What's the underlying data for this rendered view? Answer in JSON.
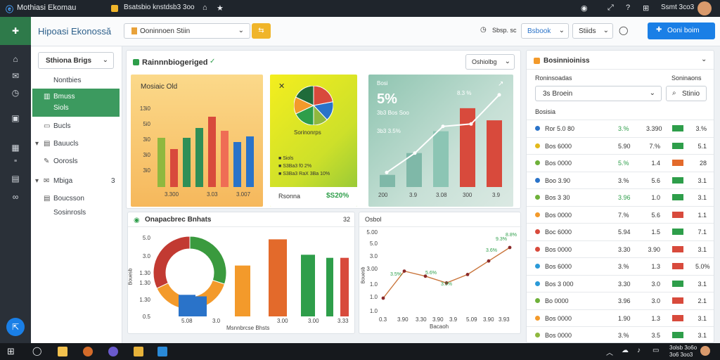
{
  "app": {
    "title": "Mothiasi Ekomau",
    "tab_label": "Bsatsbio knstdsb3 3oo"
  },
  "topbar": {
    "user_label": "Ssmt 3co3"
  },
  "header": {
    "page_title": "Hipoasi Ekonossă",
    "selector_value": "Ooninnoen Stiin",
    "help_label": "Sbsp. sc",
    "filter1_label": "Bsbook",
    "filter2_label": "Stiids",
    "primary_button": "Ooni boim"
  },
  "sidenav": {
    "dropdown_label": "Sthiona Brigs",
    "items": [
      {
        "label": "Nontbies",
        "icon": ""
      },
      {
        "label": "Bmuss",
        "icon": "chart-icon"
      },
      {
        "label": "Siols",
        "icon": ""
      },
      {
        "label": "Bucls",
        "icon": "doc-icon"
      },
      {
        "label": "Bauucls",
        "icon": "inbox-icon"
      },
      {
        "label": "Oorosls",
        "icon": "edit-icon"
      },
      {
        "label": "Mbiga",
        "icon": "mail-icon",
        "badge": "3"
      },
      {
        "label": "Boucsson",
        "icon": "list-icon"
      },
      {
        "label": "Sosinrosls",
        "icon": ""
      }
    ]
  },
  "overview": {
    "title": "Rainnnbiogeriged",
    "dropdown_label": "Oshiolbg"
  },
  "tile1": {
    "title": "Mosiaic Old",
    "yticks": [
      "13i0",
      "5i0",
      "3i0",
      "3i0",
      "3i0"
    ],
    "xticks": [
      "3.300",
      "3.03",
      "3.007"
    ]
  },
  "tile2": {
    "pie_label": "Sorinonrps",
    "legend": [
      "Siols",
      "S3Ba3 f0 2%",
      "S3Ba3 RaX 3Ba 10%"
    ],
    "footer_left": "Rsonna",
    "footer_right": "$S20%"
  },
  "tile3": {
    "label": "Bosi",
    "value": "5%",
    "sublabel": "3b3 Bos Soo",
    "trend_label": "3b3 3.5%",
    "growth_label": "8.3 %",
    "xticks": [
      "200",
      "3.9",
      "3.08",
      "300",
      "3.9"
    ]
  },
  "bottom_left": {
    "title": "Onapacbrec Bnhats",
    "count": "32",
    "yticks": [
      "5.0",
      "3.0",
      "1.30",
      "1.30",
      "1.30",
      "0.5"
    ],
    "ylabel": "Bouesb",
    "xticks": [
      "5.08",
      "3.0",
      "3.00",
      "3.00",
      "3.33"
    ],
    "xlabel": "Msnnbrcse Bhsts"
  },
  "bottom_right": {
    "title": "Osbol",
    "yticks": [
      "5.00",
      "5.0",
      "3.0",
      "3.00",
      "1.0",
      "1.0",
      "1.0"
    ],
    "ylabel": "Bouesb",
    "xticks": [
      "0.3",
      "3.90",
      "3.30",
      "3.90",
      "3.9",
      "5.09",
      "3.90",
      "3.93"
    ],
    "xlabel": "Bacaoh",
    "point_labels": [
      "3.5%",
      "5.6%",
      "3.5%",
      "3.6%",
      "9.3%",
      "8.8%"
    ]
  },
  "right_panel": {
    "title": "Bosinnioiniss",
    "label_left": "Roninsoadas",
    "label_right": "Soninaons",
    "select_value": "3s Broein",
    "button_label": "Stinio",
    "section_label": "Bosisia"
  },
  "table_rows": [
    {
      "name": "Ror 5.0 80",
      "pct": "3.%",
      "c3": "3.390",
      "c5": "3.%"
    },
    {
      "name": "Bos 6000",
      "pct": "5.90",
      "c3": "7.%",
      "c5": "5.1"
    },
    {
      "name": "Bos 0000",
      "pct": "5.%",
      "c3": "1.4",
      "c5": "28"
    },
    {
      "name": "Boo 3.90",
      "pct": "3.%",
      "c3": "5.6",
      "c5": "3.1"
    },
    {
      "name": "Bos 3 30",
      "pct": "3.96",
      "c3": "1.0",
      "c5": "3.1"
    },
    {
      "name": "Bos 0000",
      "pct": "7.%",
      "c3": "5.6",
      "c5": "1.1"
    },
    {
      "name": "Boc 6000",
      "pct": "5.94",
      "c3": "1.5",
      "c5": "7.1"
    },
    {
      "name": "Bos 0000",
      "pct": "3.30",
      "c3": "3.90",
      "c5": "3.1"
    },
    {
      "name": "Bos 6000",
      "pct": "3.%",
      "c3": "1.3",
      "c5": "5.0%"
    },
    {
      "name": "Bos 3 000",
      "pct": "3.30",
      "c3": "3.0",
      "c5": "3.1"
    },
    {
      "name": "Bo 0000",
      "pct": "3.96",
      "c3": "3.0",
      "c5": "2.1"
    },
    {
      "name": "Bos 0000",
      "pct": "1.90",
      "c3": "1.3",
      "c5": "3.1"
    },
    {
      "name": "Bos 0000",
      "pct": "3.%",
      "c3": "3.5",
      "c5": "3.1"
    }
  ],
  "taskbar": {
    "time": "3olsb 3o6o",
    "date": "3o6 3oo3"
  },
  "colors": {
    "green": "#2e9e4a",
    "red": "#d84a3c",
    "orange": "#f39a2b",
    "yellow": "#e3d21b",
    "blue": "#2a73c9",
    "accent": "#1a7fe6",
    "nav_active": "#3c9a5f"
  },
  "chart_data": [
    {
      "type": "bar",
      "categories": [
        "1",
        "2",
        "3",
        "4",
        "5",
        "6",
        "7",
        "8"
      ],
      "values": [
        3.5,
        2.7,
        3.5,
        4.2,
        5.0,
        4.0,
        3.2,
        3.6
      ],
      "colors": [
        "#8fb83f",
        "#d84a3c",
        "#2f8f57",
        "#2f8f57",
        "#d84a3c",
        "#ef6d55",
        "#2a73c9",
        "#2a73c9"
      ]
    },
    {
      "type": "pie",
      "labels": [
        "a",
        "b",
        "c",
        "d",
        "e",
        "f"
      ],
      "values": [
        22,
        16,
        12,
        18,
        14,
        18
      ],
      "colors": [
        "#d84a3c",
        "#2a73c9",
        "#8fb83f",
        "#2e9e4a",
        "#f39a2b",
        "#1f6b3a"
      ]
    },
    {
      "type": "bar",
      "categories": [
        "200",
        "3.9",
        "3.08",
        "300",
        "3.9"
      ],
      "values": [
        10,
        28,
        46,
        65,
        55
      ],
      "colors": [
        "#7fb8a8",
        "#7fb8a8",
        "#8cc5b4",
        "#d84a3c",
        "#d84a3c"
      ],
      "trend": [
        12,
        28,
        50,
        52,
        76
      ]
    },
    {
      "type": "pie",
      "labels": [
        "a",
        "b",
        "c"
      ],
      "values": [
        30,
        38,
        32
      ],
      "colors": [
        "#3a9a3e",
        "#f39a2b",
        "#c23a32"
      ]
    },
    {
      "type": "bar",
      "categories": [
        "1",
        "2",
        "3",
        "4",
        "5",
        "6",
        "7"
      ],
      "values": [
        1.4,
        1.3,
        3.3,
        5.0,
        4.0,
        3.8,
        3.8
      ],
      "colors": [
        "#2a73c9",
        "#2a73c9",
        "#f39a2b",
        "#e36a2b",
        "#2e9e4a",
        "#2e9e4a",
        "#d84a3c"
      ]
    },
    {
      "type": "line",
      "x": [
        1,
        2,
        3,
        4,
        5,
        6,
        7
      ],
      "y": [
        1.0,
        2.6,
        2.3,
        1.9,
        2.4,
        3.2,
        4.0
      ],
      "ylim": [
        0,
        5
      ]
    }
  ]
}
